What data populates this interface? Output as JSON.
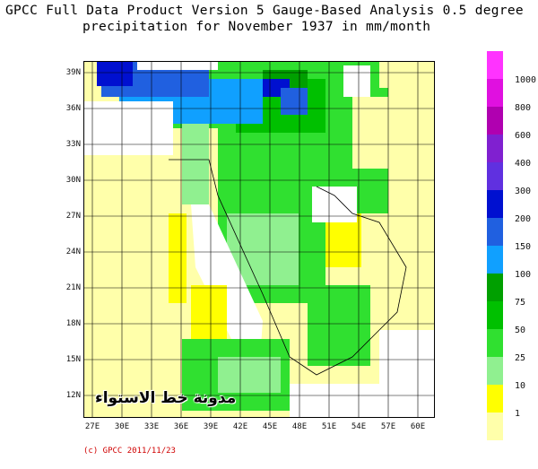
{
  "title_line1": "GPCC Full Data Product Version 5 Gauge-Based Analysis 0.5 degree",
  "title_line2": "precipitation for November  1937 in mm/month",
  "lat_labels": [
    "39N",
    "36N",
    "33N",
    "30N",
    "27N",
    "24N",
    "21N",
    "18N",
    "15N",
    "12N"
  ],
  "lon_labels": [
    "27E",
    "30E",
    "33E",
    "36E",
    "39E",
    "42E",
    "45E",
    "48E",
    "51E",
    "54E",
    "57E",
    "60E"
  ],
  "legend": {
    "labels": [
      "1000",
      "800",
      "600",
      "400",
      "300",
      "200",
      "150",
      "100",
      "75",
      "50",
      "25",
      "10",
      "1"
    ],
    "colors": [
      "#ff33ff",
      "#e010e0",
      "#b000b0",
      "#8020d0",
      "#6030e0",
      "#0010d0",
      "#2060e0",
      "#10a0ff",
      "#00a000",
      "#00c000",
      "#30e030",
      "#90f090",
      "#ffff00",
      "#ffffaa"
    ]
  },
  "colors": {
    "ocean": "#ffffff",
    "dry": "#ffffaa",
    "light_yellow": "#ffff00",
    "pale_green": "#90f090",
    "green": "#30e030",
    "mid_green": "#00c000",
    "dark_green": "#00a000",
    "light_blue": "#10a0ff",
    "blue": "#2060e0",
    "dark_blue": "#0010d0"
  },
  "credit": "(c) GPCC 2011/11/23",
  "watermark": "مدونة خط الاستواء"
}
